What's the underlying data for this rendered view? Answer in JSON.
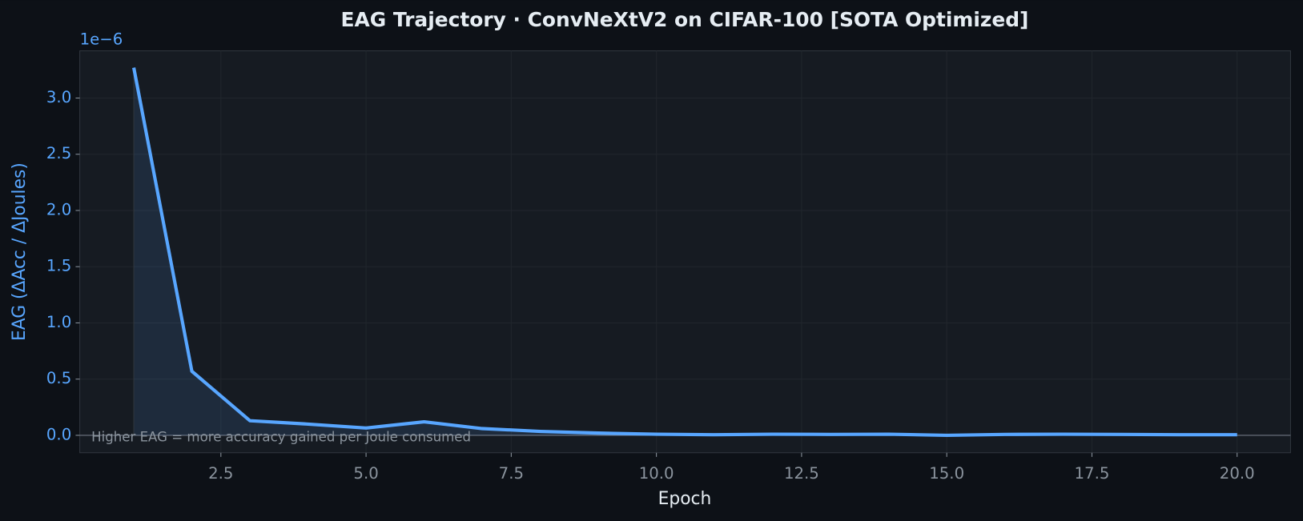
{
  "chart_data": {
    "type": "line",
    "title": "EAG Trajectory  ·  ConvNeXtV2 on CIFAR-100  [SOTA Optimized]",
    "xlabel": "Epoch",
    "ylabel": "EAG  (ΔAcc / ΔJoules)",
    "y_offset_label": "1e−6",
    "annotation": "Higher EAG = more accuracy gained per Joule consumed",
    "x": [
      1,
      2,
      3,
      4,
      5,
      6,
      7,
      8,
      9,
      10,
      11,
      12,
      13,
      14,
      15,
      16,
      17,
      18,
      19,
      20
    ],
    "series": [
      {
        "name": "EAG",
        "color": "#58a6ff",
        "values": [
          3.27,
          0.57,
          0.13,
          0.1,
          0.065,
          0.12,
          0.06,
          0.035,
          0.02,
          0.01,
          0.005,
          0.01,
          0.008,
          0.01,
          0.0,
          0.008,
          0.01,
          0.008,
          0.005,
          0.005
        ]
      }
    ],
    "xlim": [
      0.07,
      20.92
    ],
    "ylim": [
      -0.155,
      3.42
    ],
    "xticks": [
      2.5,
      {
        "value": 5,
        "label": "5.0"
      },
      7.5,
      {
        "value": 10,
        "label": "10.0"
      },
      12.5,
      {
        "value": 15,
        "label": "15.0"
      },
      17.5,
      {
        "value": 20,
        "label": "20.0"
      }
    ],
    "yticks": [
      {
        "value": 0,
        "label": "0.0"
      },
      0.5,
      {
        "value": 1,
        "label": "1.0"
      },
      1.5,
      {
        "value": 2,
        "label": "2.0"
      },
      2.5,
      {
        "value": 3,
        "label": "3.0"
      }
    ],
    "grid": true
  }
}
